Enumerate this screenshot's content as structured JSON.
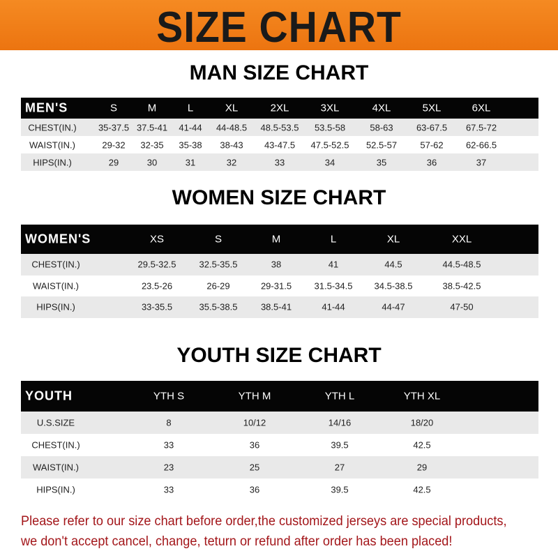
{
  "banner_title": "SIZE CHART",
  "tables": [
    {
      "title": "MAN SIZE CHART",
      "header": [
        "MEN'S",
        "S",
        "M",
        "L",
        "XL",
        "2XL",
        "3XL",
        "4XL",
        "5XL",
        "6XL"
      ],
      "rows": [
        [
          "CHEST(IN.)",
          "35-37.5",
          "37.5-41",
          "41-44",
          "44-48.5",
          "48.5-53.5",
          "53.5-58",
          "58-63",
          "63-67.5",
          "67.5-72"
        ],
        [
          "WAIST(IN.)",
          "29-32",
          "32-35",
          "35-38",
          "38-43",
          "43-47.5",
          "47.5-52.5",
          "52.5-57",
          "57-62",
          "62-66.5"
        ],
        [
          "HIPS(IN.)",
          "29",
          "30",
          "31",
          "32",
          "33",
          "34",
          "35",
          "36",
          "37"
        ]
      ]
    },
    {
      "title": "WOMEN SIZE CHART",
      "header": [
        "WOMEN'S",
        "XS",
        "S",
        "M",
        "L",
        "XL",
        "XXL"
      ],
      "rows": [
        [
          "CHEST(IN.)",
          "29.5-32.5",
          "32.5-35.5",
          "38",
          "41",
          "44.5",
          "44.5-48.5"
        ],
        [
          "WAIST(IN.)",
          "23.5-26",
          "26-29",
          "29-31.5",
          "31.5-34.5",
          "34.5-38.5",
          "38.5-42.5"
        ],
        [
          "HIPS(IN.)",
          "33-35.5",
          "35.5-38.5",
          "38.5-41",
          "41-44",
          "44-47",
          "47-50"
        ]
      ]
    },
    {
      "title": "YOUTH SIZE CHART",
      "header": [
        "YOUTH",
        "YTH S",
        "YTH M",
        "YTH L",
        "YTH XL"
      ],
      "rows": [
        [
          "U.S.SIZE",
          "8",
          "10/12",
          "14/16",
          "18/20"
        ],
        [
          "CHEST(IN.)",
          "33",
          "36",
          "39.5",
          "42.5"
        ],
        [
          "WAIST(IN.)",
          "23",
          "25",
          "27",
          "29"
        ],
        [
          "HIPS(IN.)",
          "33",
          "36",
          "39.5",
          "42.5"
        ]
      ]
    }
  ],
  "note": "Please refer to our size chart before order,the customized jerseys are special products, we don't accept cancel, change, teturn or refund after order has been placed!"
}
